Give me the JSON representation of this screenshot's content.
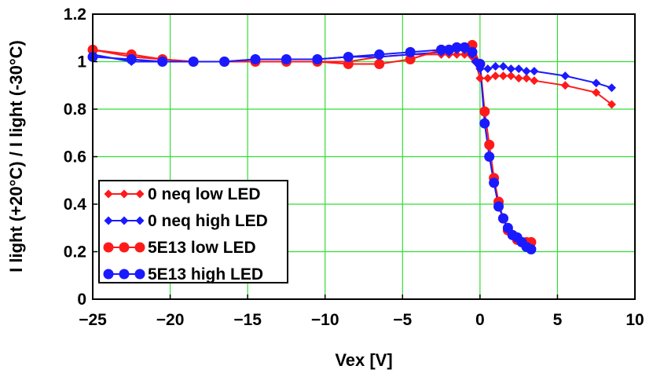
{
  "chart_data": {
    "type": "line",
    "title": "",
    "xlabel": "Vex [V]",
    "ylabel": "I light (+20°C) / I light (-30°C)",
    "xlim": [
      -25,
      10
    ],
    "ylim": [
      0,
      1.2
    ],
    "grid": true,
    "grid_color": "#33dd33",
    "legend_position": "bottom-left",
    "x_tick_labels": [
      "−25",
      "−20",
      "−15",
      "−10",
      "−5",
      "0",
      "5",
      "10"
    ],
    "x_tick_values": [
      -25,
      -20,
      -15,
      -10,
      -5,
      0,
      5,
      10
    ],
    "y_tick_labels": [
      "0",
      "0.2",
      "0.4",
      "0.6",
      "0.8",
      "1",
      "1.2"
    ],
    "y_tick_values": [
      0,
      0.2,
      0.4,
      0.6,
      0.8,
      1.0,
      1.2
    ],
    "series": [
      {
        "name": "0 neq low LED",
        "color": "#ff1a1a",
        "marker": "diamond",
        "x": [
          -25,
          -22.5,
          -20.5,
          -18.5,
          -16.5,
          -14.5,
          -12.5,
          -10.5,
          -8.5,
          -6.5,
          -4.5,
          -2.5,
          -2.0,
          -1.5,
          -1.0,
          -0.5,
          -0.3,
          0.0,
          0.5,
          1.0,
          1.5,
          2.0,
          2.5,
          3.0,
          3.5,
          5.5,
          7.5,
          8.5
        ],
        "y": [
          1.05,
          1.02,
          1.01,
          1.0,
          1.0,
          1.0,
          1.0,
          1.0,
          1.0,
          1.02,
          1.03,
          1.03,
          1.03,
          1.03,
          1.03,
          1.02,
          1.0,
          0.93,
          0.93,
          0.94,
          0.94,
          0.94,
          0.93,
          0.93,
          0.92,
          0.9,
          0.87,
          0.82
        ]
      },
      {
        "name": "0 neq high LED",
        "color": "#1a1aff",
        "marker": "diamond",
        "x": [
          -25,
          -22.5,
          -20.5,
          -18.5,
          -16.5,
          -14.5,
          -12.5,
          -10.5,
          -8.5,
          -6.5,
          -4.5,
          -2.5,
          -2.0,
          -1.5,
          -1.0,
          -0.5,
          -0.3,
          0.0,
          0.5,
          1.0,
          1.5,
          2.0,
          2.5,
          3.0,
          3.5,
          5.5,
          7.5,
          8.5
        ],
        "y": [
          1.03,
          1.0,
          1.0,
          1.0,
          1.0,
          1.01,
          1.01,
          1.01,
          1.02,
          1.02,
          1.03,
          1.04,
          1.04,
          1.05,
          1.05,
          1.03,
          1.0,
          0.97,
          0.97,
          0.98,
          0.98,
          0.97,
          0.97,
          0.96,
          0.96,
          0.94,
          0.91,
          0.89
        ]
      },
      {
        "name": "5E13 low LED",
        "color": "#ff1a1a",
        "marker": "circle",
        "x": [
          -25,
          -22.5,
          -20.5,
          -18.5,
          -16.5,
          -14.5,
          -12.5,
          -10.5,
          -8.5,
          -6.5,
          -4.5,
          -2.5,
          -2.0,
          -1.5,
          -1.0,
          -0.5,
          0.0,
          0.3,
          0.6,
          0.9,
          1.2,
          1.5,
          1.8,
          2.1,
          2.4,
          2.7,
          3.0,
          3.3
        ],
        "y": [
          1.05,
          1.03,
          1.01,
          1.0,
          1.0,
          1.0,
          1.0,
          1.0,
          0.99,
          0.99,
          1.01,
          1.05,
          1.05,
          1.06,
          1.06,
          1.07,
          0.99,
          0.79,
          0.65,
          0.51,
          0.41,
          0.34,
          0.29,
          0.27,
          0.25,
          0.24,
          0.24,
          0.24
        ]
      },
      {
        "name": "5E13 high LED",
        "color": "#1a1aff",
        "marker": "circle",
        "x": [
          -25,
          -22.5,
          -20.5,
          -18.5,
          -16.5,
          -14.5,
          -12.5,
          -10.5,
          -8.5,
          -6.5,
          -4.5,
          -2.5,
          -2.0,
          -1.5,
          -1.0,
          -0.5,
          0.0,
          0.3,
          0.6,
          0.9,
          1.2,
          1.5,
          1.8,
          2.1,
          2.4,
          2.7,
          3.0,
          3.3
        ],
        "y": [
          1.02,
          1.01,
          1.0,
          1.0,
          1.0,
          1.01,
          1.01,
          1.01,
          1.02,
          1.03,
          1.04,
          1.05,
          1.05,
          1.06,
          1.06,
          1.04,
          0.99,
          0.74,
          0.6,
          0.49,
          0.39,
          0.34,
          0.3,
          0.27,
          0.26,
          0.24,
          0.22,
          0.21
        ]
      }
    ],
    "legend_entries": [
      "0 neq low LED",
      "0 neq high LED",
      "5E13 low LED",
      "5E13 high LED"
    ]
  }
}
